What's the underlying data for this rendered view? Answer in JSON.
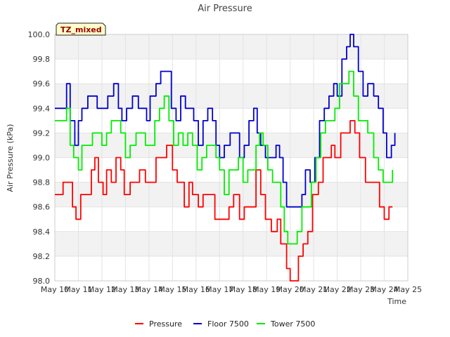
{
  "chart_data": {
    "type": "line",
    "title": "Air Pressure",
    "xlabel": "Time",
    "ylabel": "Air Pressure (kPa)",
    "ylim": [
      98.0,
      100.0
    ],
    "xlim": [
      10,
      25
    ],
    "grid": true,
    "y_ticks": [
      98.0,
      98.2,
      98.4,
      98.6,
      98.8,
      99.0,
      99.2,
      99.4,
      99.6,
      99.8,
      100.0
    ],
    "y_tick_labels": [
      "98.0",
      "98.2",
      "98.4",
      "98.6",
      "98.8",
      "99.0",
      "99.2",
      "99.4",
      "99.6",
      "99.8",
      "100.0"
    ],
    "x_ticks": [
      10,
      11,
      12,
      13,
      14,
      15,
      16,
      17,
      18,
      19,
      20,
      21,
      22,
      23,
      24,
      25
    ],
    "x_tick_labels": [
      "May 10",
      "May 11",
      "May 12",
      "May 13",
      "May 14",
      "May 15",
      "May 16",
      "May 17",
      "May 18",
      "May 19",
      "May 20",
      "May 21",
      "May 22",
      "May 23",
      "May 24",
      "May 25"
    ],
    "annotation": "TZ_mixed",
    "legend_position": "bottom-center",
    "series": [
      {
        "name": "Pressure",
        "color": "#ff0000",
        "x": [
          10.0,
          10.2,
          10.35,
          10.6,
          10.75,
          10.9,
          11.1,
          11.4,
          11.55,
          11.7,
          11.85,
          12.05,
          12.2,
          12.4,
          12.6,
          12.8,
          12.95,
          13.2,
          13.45,
          13.6,
          13.85,
          14.1,
          14.3,
          14.55,
          14.75,
          15.0,
          15.2,
          15.5,
          15.7,
          15.85,
          16.1,
          16.3,
          16.55,
          16.8,
          17.0,
          17.15,
          17.4,
          17.6,
          17.85,
          18.05,
          18.3,
          18.55,
          18.75,
          18.95,
          19.2,
          19.45,
          19.6,
          19.85,
          20.0,
          20.15,
          20.35,
          20.55,
          20.75,
          20.95,
          21.2,
          21.4,
          21.6,
          21.75,
          21.9,
          22.15,
          22.35,
          22.55,
          22.75,
          22.95,
          23.2,
          23.4,
          23.6,
          23.8,
          24.0,
          24.2,
          24.35
        ],
        "y": [
          98.7,
          98.7,
          98.8,
          98.8,
          98.6,
          98.5,
          98.7,
          98.7,
          98.9,
          99.0,
          98.8,
          98.7,
          98.9,
          98.8,
          99.0,
          98.9,
          98.7,
          98.8,
          98.8,
          98.9,
          98.8,
          98.8,
          99.0,
          99.0,
          99.1,
          98.9,
          98.8,
          98.6,
          98.8,
          98.7,
          98.6,
          98.7,
          98.7,
          98.5,
          98.5,
          98.5,
          98.6,
          98.7,
          98.5,
          98.6,
          98.6,
          98.9,
          98.7,
          98.5,
          98.4,
          98.5,
          98.3,
          98.1,
          98.0,
          98.0,
          98.2,
          98.3,
          98.4,
          98.7,
          98.8,
          99.0,
          99.0,
          99.1,
          99.0,
          99.2,
          99.2,
          99.3,
          99.2,
          99.0,
          98.8,
          98.8,
          98.8,
          98.6,
          98.5,
          98.6,
          98.6
        ]
      },
      {
        "name": "Floor 7500",
        "color": "#0000cc",
        "x": [
          10.0,
          10.3,
          10.5,
          10.65,
          10.85,
          11.0,
          11.15,
          11.4,
          11.6,
          11.8,
          12.0,
          12.25,
          12.5,
          12.7,
          12.85,
          13.05,
          13.3,
          13.55,
          13.7,
          13.9,
          14.05,
          14.3,
          14.5,
          14.75,
          14.95,
          15.15,
          15.35,
          15.55,
          15.7,
          15.9,
          16.1,
          16.3,
          16.5,
          16.7,
          16.85,
          17.0,
          17.2,
          17.45,
          17.65,
          17.85,
          18.05,
          18.25,
          18.45,
          18.6,
          18.75,
          18.95,
          19.2,
          19.4,
          19.55,
          19.7,
          19.85,
          20.05,
          20.3,
          20.5,
          20.65,
          20.85,
          21.05,
          21.25,
          21.45,
          21.65,
          21.85,
          22.0,
          22.2,
          22.4,
          22.55,
          22.7,
          22.9,
          23.1,
          23.3,
          23.55,
          23.75,
          23.95,
          24.1,
          24.3,
          24.45
        ],
        "y": [
          99.4,
          99.4,
          99.6,
          99.3,
          99.1,
          99.3,
          99.4,
          99.5,
          99.5,
          99.4,
          99.4,
          99.5,
          99.6,
          99.4,
          99.3,
          99.4,
          99.5,
          99.4,
          99.4,
          99.3,
          99.5,
          99.6,
          99.7,
          99.7,
          99.4,
          99.3,
          99.5,
          99.4,
          99.4,
          99.3,
          99.1,
          99.3,
          99.4,
          99.3,
          99.1,
          99.0,
          99.1,
          99.2,
          99.2,
          99.0,
          99.1,
          99.3,
          99.4,
          99.2,
          99.1,
          99.0,
          99.0,
          99.1,
          99.0,
          98.8,
          98.6,
          98.6,
          98.6,
          98.7,
          98.9,
          98.8,
          99.0,
          99.3,
          99.4,
          99.5,
          99.6,
          99.5,
          99.8,
          99.9,
          100.0,
          99.9,
          99.7,
          99.5,
          99.6,
          99.5,
          99.4,
          99.2,
          99.0,
          99.1,
          99.2
        ]
      },
      {
        "name": "Tower 7500",
        "color": "#00ee00",
        "x": [
          10.0,
          10.25,
          10.5,
          10.65,
          10.8,
          11.0,
          11.15,
          11.4,
          11.6,
          11.8,
          12.0,
          12.2,
          12.4,
          12.6,
          12.8,
          13.0,
          13.2,
          13.45,
          13.65,
          13.85,
          14.05,
          14.25,
          14.45,
          14.65,
          14.85,
          15.05,
          15.25,
          15.45,
          15.65,
          15.85,
          16.05,
          16.25,
          16.45,
          16.65,
          16.85,
          17.0,
          17.2,
          17.4,
          17.6,
          17.8,
          18.0,
          18.2,
          18.4,
          18.55,
          18.7,
          18.85,
          19.05,
          19.25,
          19.45,
          19.6,
          19.75,
          19.9,
          20.1,
          20.3,
          20.5,
          20.7,
          20.9,
          21.1,
          21.3,
          21.5,
          21.7,
          21.9,
          22.1,
          22.3,
          22.5,
          22.7,
          22.9,
          23.1,
          23.3,
          23.55,
          23.75,
          23.95,
          24.15,
          24.35
        ],
        "y": [
          99.3,
          99.3,
          99.4,
          99.1,
          99.0,
          98.9,
          99.1,
          99.1,
          99.2,
          99.2,
          99.1,
          99.2,
          99.3,
          99.3,
          99.2,
          99.0,
          99.1,
          99.2,
          99.2,
          99.1,
          99.1,
          99.3,
          99.4,
          99.5,
          99.3,
          99.1,
          99.2,
          99.1,
          99.2,
          99.1,
          98.9,
          99.0,
          99.1,
          99.1,
          99.0,
          98.9,
          98.7,
          98.9,
          98.9,
          99.0,
          98.8,
          98.9,
          98.9,
          99.1,
          99.2,
          99.1,
          98.9,
          98.8,
          98.8,
          98.6,
          98.4,
          98.3,
          98.3,
          98.4,
          98.6,
          98.6,
          98.8,
          99.0,
          99.2,
          99.3,
          99.3,
          99.4,
          99.6,
          99.6,
          99.7,
          99.5,
          99.3,
          99.3,
          99.2,
          99.0,
          98.9,
          98.8,
          98.8,
          98.9
        ]
      }
    ]
  }
}
